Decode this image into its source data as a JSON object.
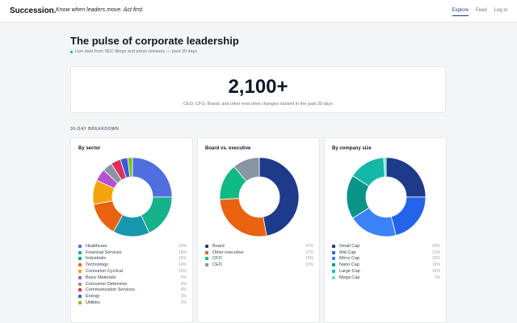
{
  "brand": "Succession.",
  "tagline": "Know when leaders move. Act first.",
  "nav": {
    "explore": "Explore",
    "feed": "Feed",
    "login": "Log in"
  },
  "hero": {
    "title": "The pulse of corporate leadership",
    "subtitle": "Live data from SEC filings and press releases — past 30 days"
  },
  "stat": {
    "value": "2,100+",
    "description": "CEO, CFO, Board, and other executive changes tracked in the past 30 days"
  },
  "section_label": "30-DAY BREAKDOWN",
  "chart_data": [
    {
      "type": "pie",
      "title": "By sector",
      "categories": [
        "Healthcare",
        "Financial Services",
        "Industrials",
        "Technology",
        "Consumer Cyclical",
        "Basic Materials",
        "Consumer Defensive",
        "Communication Services",
        "Energy",
        "Utilities"
      ],
      "values": [
        25,
        18,
        15,
        14,
        10,
        5,
        4,
        4,
        3,
        2
      ],
      "labels": [
        "25%",
        "18%",
        "15%",
        "14%",
        "10%",
        "5%",
        "4%",
        "4%",
        "3%",
        "2%"
      ],
      "colors": [
        "#4f6fe0",
        "#16b28a",
        "#1996b0",
        "#e8620f",
        "#f2a40c",
        "#b451d0",
        "#8a95a3",
        "#e0305a",
        "#3b5bdb",
        "#7cc225"
      ]
    },
    {
      "type": "pie",
      "title": "Board vs. executive",
      "categories": [
        "Board",
        "Other executive",
        "CFO",
        "CEO"
      ],
      "values": [
        47,
        27,
        15,
        11
      ],
      "labels": [
        "47%",
        "27%",
        "15%",
        "11%"
      ],
      "colors": [
        "#1e3a8a",
        "#e8620f",
        "#10b981",
        "#8a95a3"
      ]
    },
    {
      "type": "pie",
      "title": "By company size",
      "categories": [
        "Small Cap",
        "Mid Cap",
        "Micro Cap",
        "Nano Cap",
        "Large Cap",
        "Mega Cap"
      ],
      "values": [
        25,
        21,
        20,
        18,
        15,
        1
      ],
      "labels": [
        "25%",
        "21%",
        "20%",
        "18%",
        "15%",
        "1%"
      ],
      "colors": [
        "#1e3a8a",
        "#2563eb",
        "#3b82f6",
        "#0d9488",
        "#14b8a6",
        "#5eead4"
      ]
    }
  ]
}
